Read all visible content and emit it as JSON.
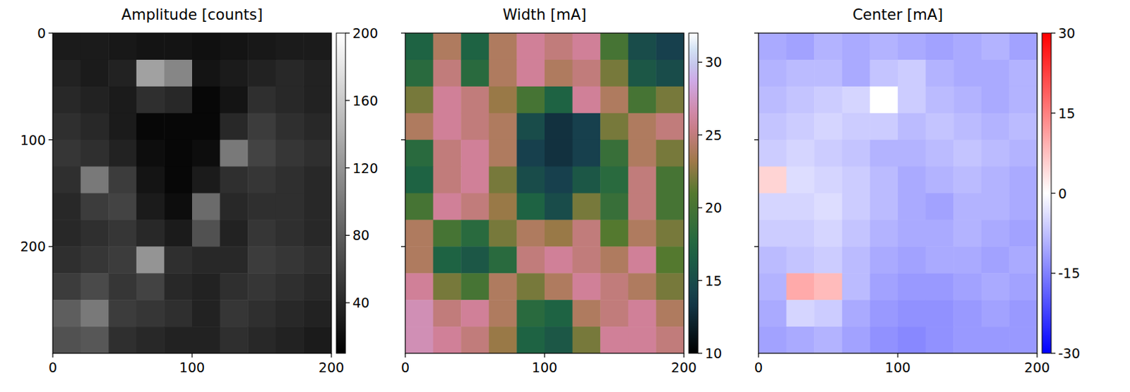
{
  "chart_data": [
    {
      "type": "heatmap",
      "title": "Amplitude [counts]",
      "color": "gray",
      "xlim": [
        0,
        200
      ],
      "ylim": [
        300,
        0
      ],
      "xticks": [
        0,
        100,
        200
      ],
      "yticks": [
        0,
        100,
        200
      ],
      "cells": [
        [
          30,
          30,
          28,
          25,
          25,
          22,
          25,
          28,
          30,
          30
        ],
        [
          35,
          30,
          35,
          130,
          110,
          25,
          30,
          35,
          40,
          35
        ],
        [
          40,
          35,
          30,
          45,
          40,
          15,
          25,
          45,
          40,
          35
        ],
        [
          45,
          40,
          30,
          15,
          15,
          15,
          40,
          55,
          45,
          40
        ],
        [
          50,
          45,
          35,
          20,
          15,
          20,
          100,
          60,
          50,
          45
        ],
        [
          45,
          100,
          55,
          25,
          15,
          30,
          45,
          50,
          45,
          40
        ],
        [
          40,
          55,
          60,
          30,
          20,
          90,
          40,
          45,
          45,
          40
        ],
        [
          40,
          45,
          50,
          40,
          30,
          70,
          35,
          50,
          45,
          40
        ],
        [
          45,
          50,
          55,
          120,
          45,
          40,
          40,
          55,
          50,
          45
        ],
        [
          55,
          65,
          50,
          60,
          40,
          35,
          45,
          50,
          45,
          40
        ],
        [
          80,
          100,
          55,
          50,
          45,
          35,
          50,
          45,
          40,
          35
        ],
        [
          70,
          75,
          45,
          40,
          35,
          35,
          45,
          40,
          35,
          30
        ]
      ],
      "colorbar": {
        "range": [
          10,
          200
        ],
        "ticks": [
          40,
          80,
          120,
          160,
          200
        ]
      }
    },
    {
      "type": "heatmap",
      "title": "Width [mA]",
      "color": "cubehelix",
      "xlim": [
        0,
        200
      ],
      "ylim": [
        300,
        0
      ],
      "xticks": [
        0,
        100,
        200
      ],
      "yticks": [
        0,
        100,
        200
      ],
      "tick_labels": "x",
      "cells": [
        [
          17,
          24,
          17,
          24,
          26,
          25,
          26,
          20,
          15,
          14
        ],
        [
          18,
          25,
          18,
          24,
          26,
          24,
          25,
          22,
          16,
          15
        ],
        [
          22,
          26,
          25,
          23,
          20,
          17,
          26,
          24,
          20,
          22
        ],
        [
          24,
          26,
          25,
          24,
          15,
          13,
          14,
          22,
          24,
          25
        ],
        [
          18,
          25,
          26,
          24,
          14,
          13,
          14,
          19,
          24,
          22
        ],
        [
          17,
          25,
          26,
          22,
          15,
          14,
          16,
          18,
          25,
          20
        ],
        [
          20,
          26,
          25,
          23,
          17,
          15,
          22,
          19,
          25,
          20
        ],
        [
          24,
          20,
          18,
          22,
          24,
          23,
          25,
          21,
          24,
          22
        ],
        [
          24,
          17,
          16,
          18,
          25,
          26,
          25,
          24,
          26,
          21
        ],
        [
          26,
          22,
          20,
          24,
          22,
          24,
          26,
          25,
          24,
          22
        ],
        [
          27,
          25,
          26,
          24,
          18,
          17,
          24,
          25,
          26,
          24
        ],
        [
          27,
          26,
          25,
          23,
          17,
          16,
          22,
          26,
          26,
          25
        ]
      ],
      "colorbar": {
        "range": [
          10,
          32
        ],
        "ticks": [
          10,
          15,
          20,
          25,
          30
        ]
      }
    },
    {
      "type": "heatmap",
      "title": "Center [mA]",
      "color": "bwr",
      "xlim": [
        0,
        200
      ],
      "ylim": [
        300,
        0
      ],
      "xticks": [
        0,
        100,
        200
      ],
      "yticks": [
        0,
        100,
        200
      ],
      "tick_labels": "x",
      "cells": [
        [
          -10,
          -11,
          -9,
          -10,
          -9,
          -10,
          -11,
          -10,
          -9,
          -11
        ],
        [
          -9,
          -8,
          -8,
          -10,
          -7,
          -6,
          -9,
          -10,
          -10,
          -9
        ],
        [
          -8,
          -7,
          -6,
          -5,
          0,
          -6,
          -8,
          -9,
          -10,
          -9
        ],
        [
          -7,
          -6,
          -5,
          -6,
          -6,
          -8,
          -7,
          -8,
          -9,
          -8
        ],
        [
          -6,
          -5,
          -6,
          -7,
          -9,
          -9,
          -8,
          -7,
          -8,
          -9
        ],
        [
          5,
          -4,
          -5,
          -6,
          -8,
          -10,
          -9,
          -8,
          -9,
          -10
        ],
        [
          -5,
          -5,
          -4,
          -6,
          -8,
          -10,
          -11,
          -9,
          -9,
          -10
        ],
        [
          -6,
          -6,
          -5,
          -7,
          -9,
          -10,
          -10,
          -9,
          -10,
          -11
        ],
        [
          -8,
          -7,
          -6,
          -8,
          -10,
          -11,
          -10,
          -10,
          -11,
          -10
        ],
        [
          -9,
          10,
          8,
          -8,
          -11,
          -12,
          -12,
          -11,
          -10,
          -11
        ],
        [
          -10,
          -5,
          -6,
          -10,
          -12,
          -13,
          -13,
          -12,
          -11,
          -12
        ],
        [
          -11,
          -10,
          -9,
          -11,
          -13,
          -14,
          -13,
          -12,
          -12,
          -12
        ]
      ],
      "colorbar": {
        "range": [
          -30,
          30
        ],
        "ticks": [
          -30,
          -15,
          0,
          15,
          30
        ]
      }
    }
  ]
}
